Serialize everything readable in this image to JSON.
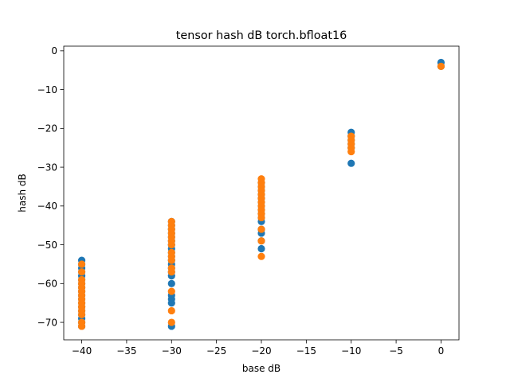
{
  "chart_data": {
    "type": "scatter",
    "title": "tensor hash dB torch.bfloat16",
    "xlabel": "base dB",
    "ylabel": "hash dB",
    "xlim": [
      -42,
      2
    ],
    "ylim": [
      -74.5,
      1.2
    ],
    "x_ticks": [
      -40,
      -35,
      -30,
      -25,
      -20,
      -15,
      -10,
      -5,
      0
    ],
    "x_tick_labels": [
      "−40",
      "−35",
      "−30",
      "−25",
      "−20",
      "−15",
      "−10",
      "−5",
      "0"
    ],
    "y_ticks": [
      0,
      -10,
      -20,
      -30,
      -40,
      -50,
      -60,
      -70
    ],
    "y_tick_labels": [
      "0",
      "−10",
      "−20",
      "−30",
      "−40",
      "−50",
      "−60",
      "−70"
    ],
    "grid": false,
    "series": [
      {
        "color": "#1f77b4",
        "points": [
          [
            -40,
            -54
          ],
          [
            -40,
            -55
          ],
          [
            -40,
            -56
          ],
          [
            -40,
            -57
          ],
          [
            -40,
            -58
          ],
          [
            -40,
            -59
          ],
          [
            -40,
            -60
          ],
          [
            -40,
            -61
          ],
          [
            -40,
            -62
          ],
          [
            -40,
            -63
          ],
          [
            -40,
            -64
          ],
          [
            -40,
            -65
          ],
          [
            -40,
            -66
          ],
          [
            -40,
            -67
          ],
          [
            -40,
            -68
          ],
          [
            -40,
            -69
          ],
          [
            -40,
            -70
          ],
          [
            -40,
            -71
          ],
          [
            -30,
            -44
          ],
          [
            -30,
            -45
          ],
          [
            -30,
            -46
          ],
          [
            -30,
            -47
          ],
          [
            -30,
            -48
          ],
          [
            -30,
            -49
          ],
          [
            -30,
            -50
          ],
          [
            -30,
            -51
          ],
          [
            -30,
            -52
          ],
          [
            -30,
            -53
          ],
          [
            -30,
            -54
          ],
          [
            -30,
            -55
          ],
          [
            -30,
            -56
          ],
          [
            -30,
            -57
          ],
          [
            -30,
            -58
          ],
          [
            -30,
            -60
          ],
          [
            -30,
            -63
          ],
          [
            -30,
            -64
          ],
          [
            -30,
            -65
          ],
          [
            -30,
            -71
          ],
          [
            -20,
            -34
          ],
          [
            -20,
            -35
          ],
          [
            -20,
            -36
          ],
          [
            -20,
            -37
          ],
          [
            -20,
            -38
          ],
          [
            -20,
            -39
          ],
          [
            -20,
            -40
          ],
          [
            -20,
            -41
          ],
          [
            -20,
            -42
          ],
          [
            -20,
            -43
          ],
          [
            -20,
            -44
          ],
          [
            -20,
            -46
          ],
          [
            -20,
            -47
          ],
          [
            -20,
            -49
          ],
          [
            -20,
            -51
          ],
          [
            -10,
            -21
          ],
          [
            -10,
            -22
          ],
          [
            -10,
            -23
          ],
          [
            -10,
            -24
          ],
          [
            -10,
            -25
          ],
          [
            -10,
            -29
          ],
          [
            0,
            -3
          ],
          [
            0,
            -4
          ]
        ]
      },
      {
        "color": "#ff7f0e",
        "points": [
          [
            -40,
            -55
          ],
          [
            -40,
            -57
          ],
          [
            -40,
            -59
          ],
          [
            -40,
            -60
          ],
          [
            -40,
            -61
          ],
          [
            -40,
            -62
          ],
          [
            -40,
            -63
          ],
          [
            -40,
            -64
          ],
          [
            -40,
            -65
          ],
          [
            -40,
            -66
          ],
          [
            -40,
            -67
          ],
          [
            -40,
            -68
          ],
          [
            -40,
            -70
          ],
          [
            -40,
            -71
          ],
          [
            -30,
            -44
          ],
          [
            -30,
            -45
          ],
          [
            -30,
            -46
          ],
          [
            -30,
            -47
          ],
          [
            -30,
            -48
          ],
          [
            -30,
            -49
          ],
          [
            -30,
            -50
          ],
          [
            -30,
            -52
          ],
          [
            -30,
            -53
          ],
          [
            -30,
            -54
          ],
          [
            -30,
            -56
          ],
          [
            -30,
            -57
          ],
          [
            -30,
            -62
          ],
          [
            -30,
            -67
          ],
          [
            -30,
            -70
          ],
          [
            -20,
            -33
          ],
          [
            -20,
            -34
          ],
          [
            -20,
            -35
          ],
          [
            -20,
            -36
          ],
          [
            -20,
            -37
          ],
          [
            -20,
            -38
          ],
          [
            -20,
            -39
          ],
          [
            -20,
            -40
          ],
          [
            -20,
            -41
          ],
          [
            -20,
            -42
          ],
          [
            -20,
            -43
          ],
          [
            -20,
            -46
          ],
          [
            -20,
            -49
          ],
          [
            -20,
            -53
          ],
          [
            -10,
            -22
          ],
          [
            -10,
            -23
          ],
          [
            -10,
            -24
          ],
          [
            -10,
            -25
          ],
          [
            -10,
            -26
          ],
          [
            0,
            -4
          ]
        ]
      }
    ]
  }
}
